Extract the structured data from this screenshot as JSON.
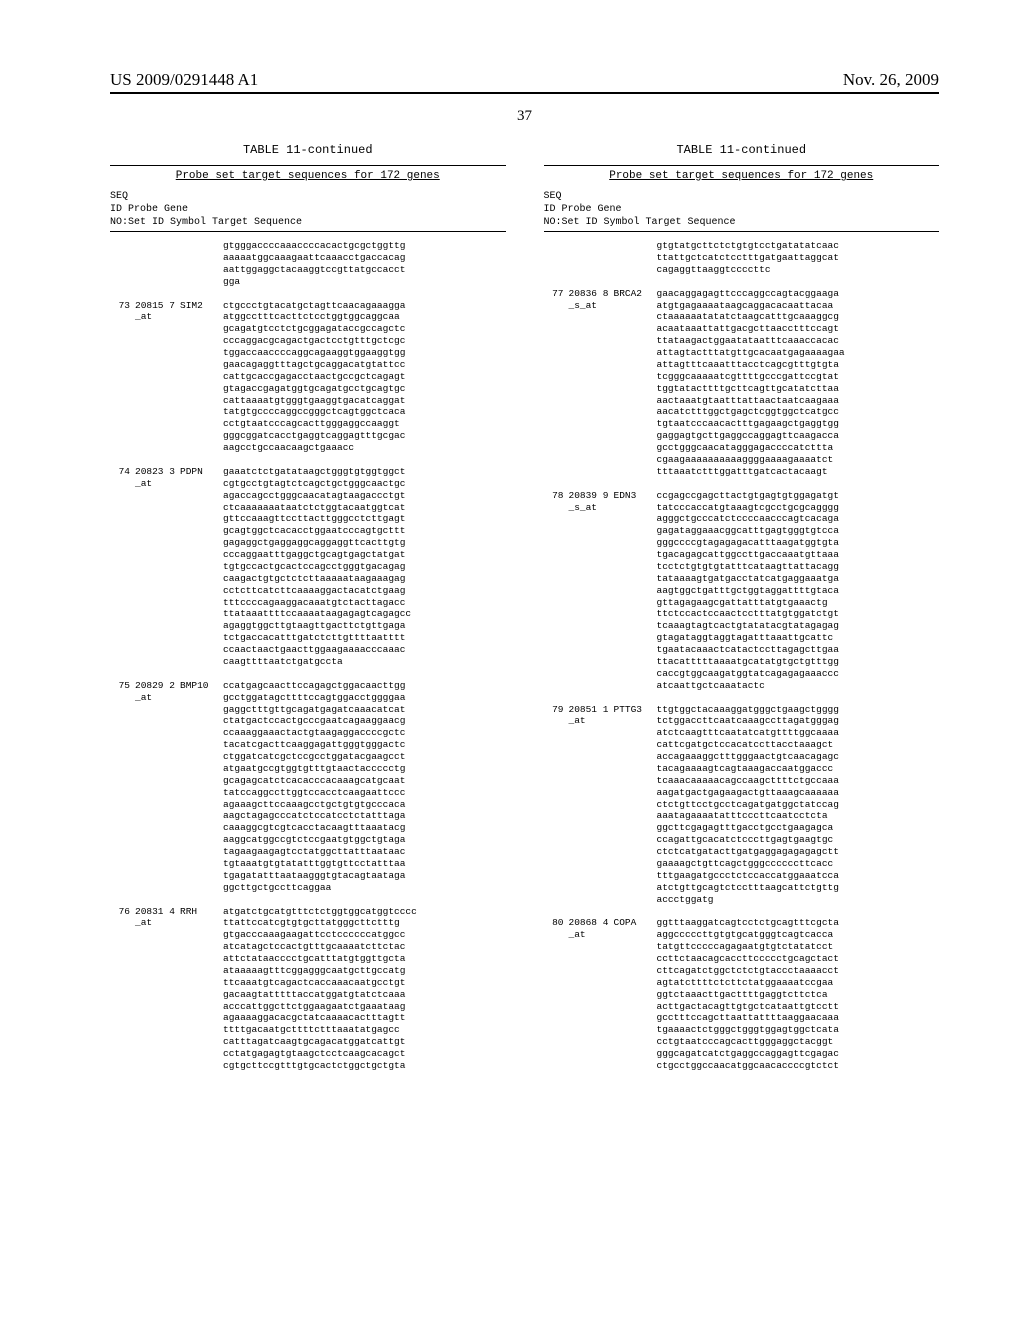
{
  "header": {
    "publication_number": "US 2009/0291448 A1",
    "publication_date": "Nov. 26, 2009"
  },
  "page_number": "37",
  "table": {
    "title": "TABLE 11-continued",
    "subtitle": "Probe set target sequences for 172 genes",
    "header_line1": "SEQ",
    "header_line2": "ID Probe  Gene",
    "header_line3": "NO:Set ID Symbol Target Sequence"
  },
  "left_column": {
    "continuation": "gtgggaccccaaaccccacactgcgctggttg\naaaaatggcaaagaattcaaacctgaccacag\naattggaggctacaaggtccgttatgccacct\ngga",
    "entries": [
      {
        "seq": "73",
        "probe": "20815\n7_at",
        "gene": "SIM2",
        "sequence": "ctgccctgtacatgctagttcaacagaaagga\natggcctttcacttctcctggtggcaggcaa\ngcagatgtcctctgcggagataccgccagctc\ncccaggacgcagactgactcctgtttgctcgc\ntggaccaaccccaggcagaaggtggaaggtgg\ngaacagaggtttagctgcaggacatgtattcc\ncattgcaccgagacctaactgccgctcagagt\ngtagaccgagatggtgcagatgcctgcagtgc\ncattaaaatgtgggtgaaggtgacatcaggat\ntatgtgccccaggccgggctcagtggctcaca\ncctgtaatcccagcacttgggaggccaaggt\ngggcggatcacctgaggtcaggagtttgcgac\naagcctgccaacaagctgaaacc"
      },
      {
        "seq": "74",
        "probe": "20823\n3_at",
        "gene": "PDPN",
        "sequence": "gaaatctctgatataagctgggtgtggtggct\ncgtgcctgtagtctcagctgctgggcaactgc\nagaccagcctgggcaacatagtaagaccctgt\nctcaaaaaaataatctctggtacaatggtcat\ngttccaaagttccttacttgggcctcttgagt\ngcagtggctcacacctggaatcccagtgcttt\ngagaggctgaggaggcaggaggttcacttgtg\ncccaggaatttgaggctgcagtgagctatgat\ntgtgccactgcactccagcctgggtgacagag\ncaagactgtgctctcttaaaaataagaaagag\ncctcttcatcttcaaaaggactacatctgaag\ntttccccagaaggacaaatgtctacttagacc\nttataaattttccaaaataagagagtcagagcc\nagaggtggcttgtaagttgacttctgttgaga\ntctgaccacatttgatctcttgttttaatttt\nccaactaactgaacttggaagaaaacccaaac\ncaagttttaatctgatgccta"
      },
      {
        "seq": "75",
        "probe": "20829\n2_at",
        "gene": "BMP10",
        "sequence": "ccatgagcaacttccagagctggacaacttgg\ngcctggatagcttttccagtggacctggggaa\ngaggctttgttgcagatgagatcaaacatcat\nctatgactccactgcccgaatcagaaggaacg\nccaaaggaaactactgtaagaggaccccgctc\ntacatcgacttcaaggagattgggtgggactc\nctggatcatcgctccgcctggatacgaagcct\natgaatgccgtggtgtttgtaactaccccctg\ngcagagcatctcacacccacaaagcatgcaat\ntatccaggccttggtccacctcaagaattccc\nagaaagcttccaaagcctgctgtgtgcccaca\naagctagagcccatctccatcctctatttaga\ncaaaggcgtcgtcacctacaagtttaaatacg\naaggcatggccgtctccgaatgtggctgtaga\ntagaagaagagtcctatggcttatttaataac\ntgtaaatgtgtatatttggtgttcctatttaa\ntgagatatttaataagggtgtacagtaataga\nggcttgctgccttcaggaa"
      },
      {
        "seq": "76",
        "probe": "20831\n4_at",
        "gene": "RRH",
        "sequence": "atgatctgcatgtttctctggtggcatggtcccc\nttattccatcgtgtgcttatgggcttctttg\ngtgacccaaagaagattcctccccccatggcc\natcatagctccactgtttgcaaaatcttctac\nattctataacccctgcatttatgtggttgcta\nataaaaagtttcggagggcaatgcttgccatg\nttcaaatgtcagactcaccaaacaatgcctgt\ngacaagtatttttaccatggatgtatctcaaa\nacccattggcttctggaagaatctgaaataag\nagaaaaggacacgctatcaaaacactttagtt\nttttgacaatgcttttctttaaatatgagcc\ncatttagatcaagtgcagacatggatcattgt\ncctatgagagtgtaagctcctcaagcacagct\ncgtgcttccgtttgtgcactctggctgctgta"
      }
    ]
  },
  "right_column": {
    "continuation": "gtgtatgcttctctgtgtcctgatatatcaac\nttattgctcatctcctttgatgaattaggcat\ncagaggttaaggtccccttc",
    "entries": [
      {
        "seq": "77",
        "probe": "20836\n8_s_at",
        "gene": "BRCA2",
        "sequence": "gaacaggagagttcccaggccagtacggaaga\natgtgagaaaataagcaggacacaattacaa\nctaaaaaatatatctaagcatttgcaaaggcg\nacaataaattattgacgcttaacctttccagt\nttataagactggaatataatttcaaaccacac\nattagtactttatgttgcacaatgagaaaagaa\nattagtttcaaatttacctcagcgtttgtgta\ntcgggcaaaaatcgttttgcccgattccgtat\ntggtatacttttgcttcagttgcatatcttaa\naactaaatgtaatttattaactaatcaagaaa\naacatctttggctgagctcggtggctcatgcc\ntgtaatcccaacactttgagaagctgaggtgg\ngaggagtgcttgaggccaggagttcaagacca\ngcctgggcaacatagggagaccccatcttta\ncgaagaaaaaaaaaaggggaaaagaaaatct\ntttaaatctttggatttgatcactacaagt"
      },
      {
        "seq": "78",
        "probe": "20839\n9_s_at",
        "gene": "EDN3",
        "sequence": "ccgagccgagcttactgtgagtgtggagatgt\ntatcccaccatgtaaagtcgcctgcgcagggg\nagggctgcccatctccccaacccagtcacaga\ngagataggaaacggcatttgagtgggtgtcca\ngggccccgtagagagacatttaagatggtgta\ntgacagagcattggccttgaccaaatgttaaa\ntcctctgtgtgtatttcataagttattacagg\ntataaaagtgatgacctatcatgaggaaatga\naagtggctgatttgctggtaggattttgtaca\ngttagagaagcgattatttatgtgaaactg\nttctccactccaactcctttatgtggatctgt\ntcaaagtagtcactgtatatacgtatagagag\ngtagataggtaggtagatttaaattgcattc\ntgaatacaaactcatactccttagagcttgaa\nttacatttttaaaatgcatatgtgctgtttgg\ncaccgtggcaagatggtatcagagagaaaccc\natcaattgctcaaatactc"
      },
      {
        "seq": "79",
        "probe": "20851\n1_at",
        "gene": "PTTG3",
        "sequence": "ttgtggctacaaaggatgggctgaagctgggg\ntctggaccttcaatcaaagccttagatgggag\natctcaagtttcaatatcatgttttggcaaaa\ncattcgatgctccacatccttacctaaagct\naccagaaaggctttgggaactgtcaacagagc\ntacagaaaagtcagtaaagaccaatggaccc\ntcaaacaaaaacagccaagcttttctgccaaa\naagatgactgagaagactgttaaagcaaaaaa\nctctgttcctgcctcagatgatggctatccag\naaatagaaaatatttcccttcaatcctcta\nggcttcgagagtttgacctgcctgaagagca\nccagattgcacatctcccttgagtgaagtgc\nctctcatgatacttgatgaggagagagagctt\ngaaaagctgttcagctgggccccccttcacc\ntttgaagatgccctctccaccatggaaatcca\natctgttgcagtctcctttaagcattctgttg\naccctggatg"
      },
      {
        "seq": "80",
        "probe": "20868\n4_at",
        "gene": "COPA",
        "sequence": "ggtttaaggatcagtcctctgcagtttcgcta\naggcccccttgtgtgcatgggtcagtcacca\ntatgttcccccagagaatgtgtctatatcct\nccttctaacagcaccttccccctgcagctact\ncttcagatctggctctctgtaccctaaaacct\nagtatcttttctcttctatggaaaatccgaa\nggtctaaacttgacttttgaggtcttctca\nacttgactacagttgtgctcataattgtcctt\ngcctttccagcttaattattttaaggaacaaa\ntgaaaactctgggctgggtggagtggctcata\ncctgtaatcccagcacttgggaggctacggt\ngggcagatcatctgaggccaggagttcgagac\nctgcctggccaacatggcaacaccccgtctct"
      }
    ]
  }
}
